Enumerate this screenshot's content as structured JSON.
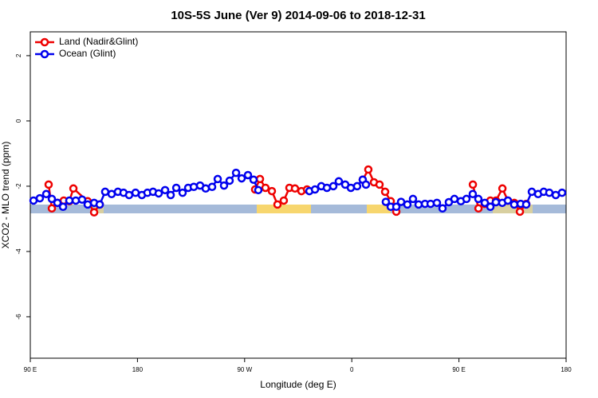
{
  "chart_data": {
    "type": "line",
    "title": "10S-5S June (Ver 9)   2014-09-06 to 2018-12-31",
    "xlabel": "Longitude (deg E)",
    "ylabel": "XCO2 - MLO trend (ppm)",
    "xlim": [
      90,
      540
    ],
    "ylim": [
      -7.27,
      2.73
    ],
    "xticks": [
      {
        "value": 90,
        "label": "90 E"
      },
      180,
      {
        "value": 270,
        "label": "90 W"
      },
      {
        "value": 360,
        "label": "0"
      },
      {
        "value": 450,
        "label": "90 E"
      },
      {
        "value": 540,
        "label": "180"
      }
    ],
    "yticks": [
      2,
      0,
      -2,
      -4,
      -6
    ],
    "legend": "top-left",
    "series": [
      {
        "name": "Land (Nadir&Glint)",
        "color": "#ee0000",
        "x": [
          105.4,
          108.1,
          112.8,
          118.1,
          122.8,
          126.2,
          138.2,
          143.6,
          148.3,
          null,
          278.8,
          282.9,
          287.5,
          292.9,
          297.6,
          302.9,
          307.6,
          312.3,
          317.7,
          322.4,
          null,
          369.2,
          373.9,
          378.6,
          383.3,
          388.0,
          392.7,
          397.4,
          null,
          461.7,
          466.4,
          471.7,
          476.4,
          481.1,
          486.5,
          491.1,
          496.5,
          501.2,
          506.5
        ],
        "values": [
          -1.95,
          -2.68,
          -2.51,
          -2.44,
          -2.46,
          -2.07,
          -2.46,
          -2.8,
          -2.56,
          null,
          -2.1,
          -1.78,
          -2.05,
          -2.15,
          -2.56,
          -2.44,
          -2.05,
          -2.07,
          -2.15,
          -2.1,
          null,
          -1.8,
          -1.49,
          -1.88,
          -1.95,
          -2.17,
          -2.46,
          -2.78,
          null,
          -1.95,
          -2.68,
          -2.54,
          -2.44,
          -2.44,
          -2.07,
          -2.44,
          -2.51,
          -2.78,
          -2.54
        ]
      },
      {
        "name": "Ocean (Glint)",
        "color": "#0000ee",
        "x": [
          92.7,
          98.0,
          103.4,
          108.1,
          112.8,
          117.5,
          122.8,
          128.2,
          133.5,
          138.2,
          143.6,
          148.3,
          152.9,
          158.3,
          163.6,
          168.3,
          173.0,
          178.4,
          183.7,
          188.4,
          193.1,
          197.8,
          203.2,
          207.9,
          212.6,
          217.9,
          222.6,
          227.3,
          232.6,
          237.3,
          242.7,
          247.4,
          252.7,
          257.4,
          262.8,
          267.5,
          272.8,
          277.5,
          281.5,
          null,
          324.4,
          329.1,
          334.4,
          339.1,
          344.5,
          349.1,
          354.5,
          359.2,
          364.5,
          369.2,
          371.9,
          null,
          388.6,
          392.7,
          397.4,
          401.4,
          406.7,
          411.4,
          416.1,
          421.5,
          426.2,
          431.5,
          436.2,
          441.5,
          446.2,
          451.6,
          456.3,
          461.6,
          466.3,
          471.7,
          476.4,
          481.0,
          486.4,
          491.1,
          496.4,
          501.8,
          506.5,
          511.2,
          516.5,
          521.2,
          525.9,
          531.3,
          536.6
        ],
        "values": [
          -2.44,
          -2.37,
          -2.24,
          -2.39,
          -2.51,
          -2.63,
          -2.44,
          -2.44,
          -2.41,
          -2.56,
          -2.51,
          -2.56,
          -2.17,
          -2.24,
          -2.17,
          -2.2,
          -2.27,
          -2.2,
          -2.27,
          -2.2,
          -2.17,
          -2.22,
          -2.12,
          -2.27,
          -2.05,
          -2.2,
          -2.05,
          -2.02,
          -1.98,
          -2.07,
          -2.02,
          -1.78,
          -1.98,
          -1.83,
          -1.59,
          -1.76,
          -1.66,
          -1.8,
          -2.12,
          null,
          -2.15,
          -2.1,
          -2.0,
          -2.05,
          -2.0,
          -1.85,
          -1.95,
          -2.05,
          -2.0,
          -1.8,
          -1.95,
          null,
          -2.48,
          -2.63,
          -2.63,
          -2.48,
          -2.56,
          -2.39,
          -2.56,
          -2.54,
          -2.54,
          -2.51,
          -2.68,
          -2.49,
          -2.39,
          -2.46,
          -2.39,
          -2.24,
          -2.39,
          -2.51,
          -2.63,
          -2.49,
          -2.51,
          -2.44,
          -2.56,
          -2.54,
          -2.56,
          -2.17,
          -2.24,
          -2.17,
          -2.2,
          -2.27,
          -2.2
        ]
      }
    ]
  }
}
